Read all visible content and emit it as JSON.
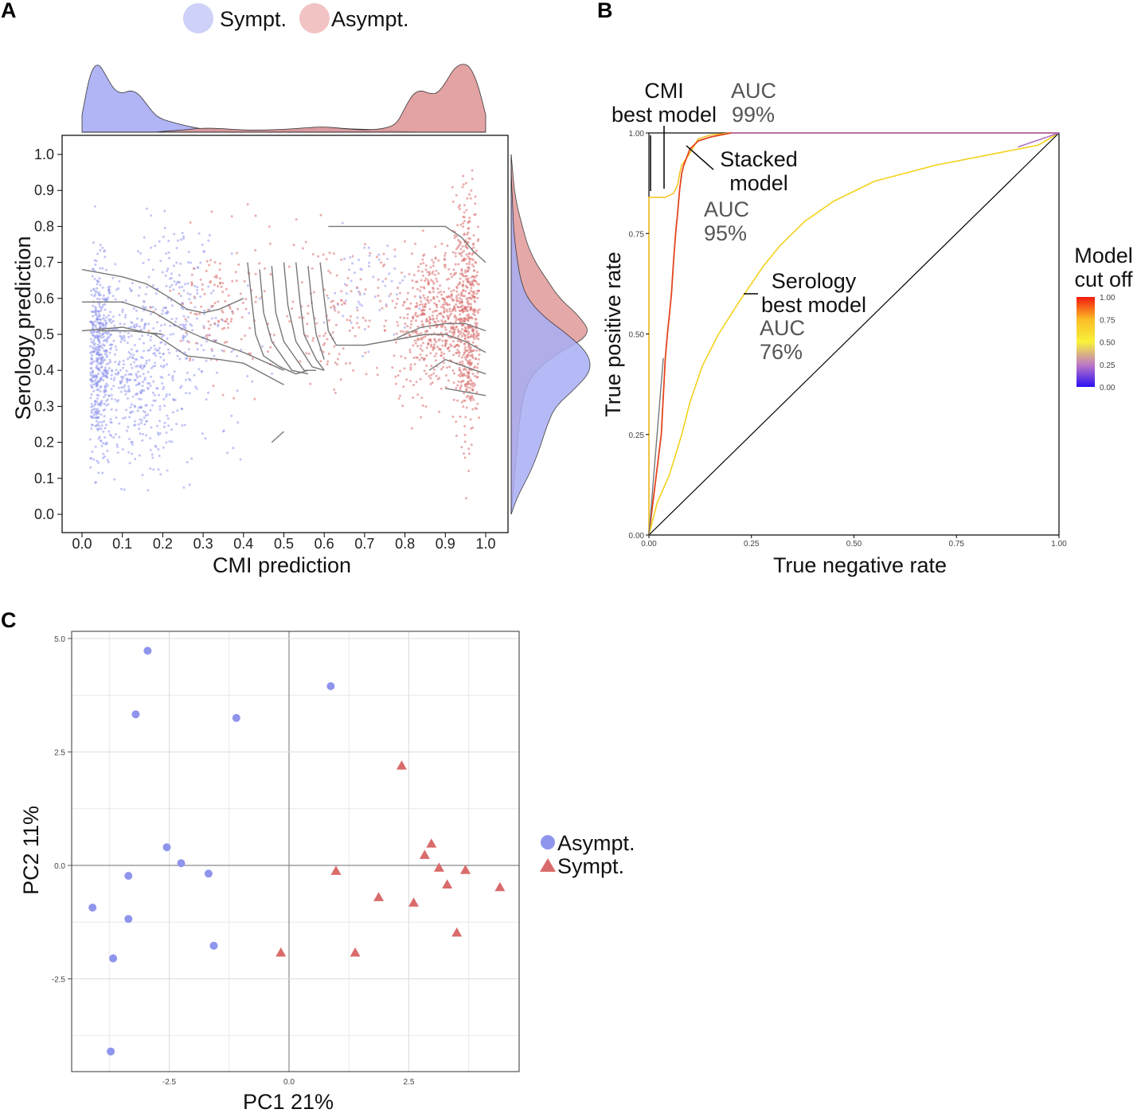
{
  "colors": {
    "sympt": "#8f95ec",
    "asympt": "#d96b6b",
    "sympt_fill": "#a9aef5",
    "asympt_fill": "#e0999a",
    "grid": "#e8e8e8"
  },
  "chart_data": [
    {
      "panel": "A",
      "type": "scatter",
      "legend": {
        "items": [
          "Sympt.",
          "Asympt."
        ],
        "placement": "top"
      },
      "xlabel": "CMI prediction",
      "ylabel": "Serology prediction",
      "xlim": [
        0,
        1
      ],
      "ylim": [
        0,
        1
      ],
      "x_ticks": [
        "0.0",
        "0.1",
        "0.2",
        "0.3",
        "0.4",
        "0.5",
        "0.6",
        "0.7",
        "0.8",
        "0.9",
        "1.0"
      ],
      "y_ticks": [
        "0.0",
        "0.1",
        "0.2",
        "0.3",
        "0.4",
        "0.5",
        "0.6",
        "0.7",
        "0.8",
        "0.9",
        "1.0"
      ],
      "marginal_x": {
        "x": [
          0.0,
          0.02,
          0.04,
          0.06,
          0.08,
          0.1,
          0.12,
          0.14,
          0.16,
          0.18,
          0.2,
          0.22,
          0.25,
          0.3,
          0.35,
          0.4,
          0.45,
          0.5,
          0.55,
          0.6,
          0.65,
          0.7,
          0.75,
          0.78,
          0.8,
          0.82,
          0.84,
          0.86,
          0.88,
          0.9,
          0.92,
          0.94,
          0.96,
          0.98,
          1.0
        ],
        "sympt": [
          0.25,
          0.85,
          1.0,
          0.8,
          0.6,
          0.55,
          0.6,
          0.55,
          0.4,
          0.25,
          0.18,
          0.15,
          0.1,
          0.04,
          0.03,
          0.03,
          0.03,
          0.03,
          0.04,
          0.06,
          0.05,
          0.04,
          0.03,
          0.02,
          0.01,
          0.0,
          0.0,
          0.0,
          0.0,
          0.0,
          0.0,
          0.0,
          0.0,
          0.0,
          0.0
        ],
        "asympt": [
          0.0,
          0.0,
          0.0,
          0.0,
          0.0,
          0.0,
          0.0,
          0.0,
          0.0,
          0.0,
          0.01,
          0.02,
          0.03,
          0.06,
          0.05,
          0.03,
          0.03,
          0.04,
          0.06,
          0.08,
          0.05,
          0.03,
          0.05,
          0.12,
          0.35,
          0.55,
          0.6,
          0.55,
          0.55,
          0.7,
          0.9,
          0.98,
          0.95,
          0.7,
          0.25
        ]
      },
      "marginal_y": {
        "y": [
          0.0,
          0.05,
          0.1,
          0.15,
          0.2,
          0.25,
          0.3,
          0.35,
          0.4,
          0.45,
          0.5,
          0.55,
          0.6,
          0.65,
          0.7,
          0.75,
          0.8,
          0.85,
          0.9,
          0.95,
          1.0
        ],
        "sympt": [
          0.0,
          0.08,
          0.2,
          0.3,
          0.38,
          0.45,
          0.55,
          0.8,
          1.0,
          0.95,
          0.7,
          0.4,
          0.2,
          0.12,
          0.08,
          0.05,
          0.03,
          0.02,
          0.01,
          0.0,
          0.0
        ],
        "asympt": [
          0.0,
          0.02,
          0.04,
          0.06,
          0.08,
          0.1,
          0.13,
          0.18,
          0.3,
          0.6,
          1.0,
          0.85,
          0.6,
          0.45,
          0.3,
          0.2,
          0.14,
          0.08,
          0.04,
          0.02,
          0.0
        ]
      },
      "contour_lines": [
        [
          [
            0.0,
            0.68
          ],
          [
            0.1,
            0.66
          ],
          [
            0.16,
            0.64
          ],
          [
            0.22,
            0.6
          ],
          [
            0.26,
            0.57
          ],
          [
            0.3,
            0.56
          ],
          [
            0.34,
            0.57
          ],
          [
            0.4,
            0.6
          ]
        ],
        [
          [
            0.0,
            0.59
          ],
          [
            0.1,
            0.59
          ],
          [
            0.18,
            0.56
          ],
          [
            0.24,
            0.52
          ],
          [
            0.3,
            0.49
          ],
          [
            0.4,
            0.45
          ],
          [
            0.5,
            0.4
          ]
        ],
        [
          [
            0.0,
            0.51
          ],
          [
            0.1,
            0.52
          ],
          [
            0.18,
            0.5
          ],
          [
            0.26,
            0.44
          ],
          [
            0.34,
            0.43
          ],
          [
            0.4,
            0.42
          ],
          [
            0.5,
            0.36
          ]
        ],
        [
          [
            0.04,
            0.51
          ],
          [
            0.12,
            0.51
          ],
          [
            0.2,
            0.5
          ]
        ],
        [
          [
            0.41,
            0.7
          ],
          [
            0.42,
            0.6
          ],
          [
            0.43,
            0.5
          ],
          [
            0.45,
            0.44
          ],
          [
            0.49,
            0.41
          ],
          [
            0.53,
            0.39
          ],
          [
            0.56,
            0.4
          ]
        ],
        [
          [
            0.44,
            0.68
          ],
          [
            0.45,
            0.56
          ],
          [
            0.47,
            0.48
          ],
          [
            0.52,
            0.4
          ],
          [
            0.56,
            0.39
          ]
        ],
        [
          [
            0.47,
            0.69
          ],
          [
            0.48,
            0.56
          ],
          [
            0.5,
            0.48
          ],
          [
            0.55,
            0.4
          ],
          [
            0.58,
            0.4
          ]
        ],
        [
          [
            0.5,
            0.7
          ],
          [
            0.51,
            0.58
          ],
          [
            0.53,
            0.48
          ],
          [
            0.57,
            0.41
          ],
          [
            0.6,
            0.4
          ]
        ],
        [
          [
            0.53,
            0.7
          ],
          [
            0.54,
            0.59
          ],
          [
            0.55,
            0.5
          ],
          [
            0.58,
            0.43
          ],
          [
            0.6,
            0.4
          ]
        ],
        [
          [
            0.56,
            0.69
          ],
          [
            0.57,
            0.58
          ],
          [
            0.58,
            0.5
          ],
          [
            0.6,
            0.43
          ]
        ],
        [
          [
            0.59,
            0.7
          ],
          [
            0.6,
            0.6
          ],
          [
            0.61,
            0.51
          ],
          [
            0.63,
            0.47
          ],
          [
            0.7,
            0.47
          ],
          [
            0.75,
            0.48
          ],
          [
            0.8,
            0.49
          ],
          [
            0.85,
            0.5
          ],
          [
            0.9,
            0.5
          ],
          [
            0.95,
            0.48
          ],
          [
            1.0,
            0.45
          ]
        ],
        [
          [
            0.61,
            0.8
          ],
          [
            0.8,
            0.8
          ],
          [
            0.9,
            0.8
          ],
          [
            0.94,
            0.77
          ],
          [
            0.97,
            0.73
          ],
          [
            1.0,
            0.7
          ]
        ],
        [
          [
            0.78,
            0.49
          ],
          [
            0.84,
            0.52
          ],
          [
            0.9,
            0.53
          ],
          [
            0.95,
            0.53
          ],
          [
            1.0,
            0.51
          ]
        ],
        [
          [
            0.86,
            0.4
          ],
          [
            0.9,
            0.43
          ],
          [
            0.95,
            0.41
          ],
          [
            1.0,
            0.39
          ]
        ],
        [
          [
            0.9,
            0.35
          ],
          [
            0.95,
            0.34
          ],
          [
            1.0,
            0.33
          ]
        ],
        [
          [
            0.47,
            0.2
          ],
          [
            0.5,
            0.23
          ]
        ]
      ]
    },
    {
      "panel": "B",
      "type": "line",
      "xlabel": "True negative rate",
      "ylabel": "True positive rate",
      "xlim": [
        0,
        1
      ],
      "ylim": [
        0,
        1
      ],
      "x_ticks": [
        "0.00",
        "0.25",
        "0.50",
        "0.75",
        "1.00"
      ],
      "y_ticks": [
        "0.00",
        "0.25",
        "0.50",
        "0.75",
        "1.00"
      ],
      "colorbar": {
        "title_line1": "Model",
        "title_line2": "cut off",
        "ticks": [
          "1.00",
          "0.75",
          "0.50",
          "0.25",
          "0.00"
        ]
      },
      "series": [
        {
          "name": "CMI best model",
          "auc_label": "AUC",
          "auc_value": "99%",
          "points": [
            [
              0.0,
              0.0
            ],
            [
              0.0,
              0.84
            ],
            [
              0.02,
              0.84
            ],
            [
              0.04,
              0.84
            ],
            [
              0.06,
              0.85
            ],
            [
              0.07,
              0.87
            ],
            [
              0.075,
              0.9
            ],
            [
              0.08,
              0.92
            ],
            [
              0.1,
              0.95
            ],
            [
              0.12,
              0.985
            ],
            [
              0.15,
              0.995
            ],
            [
              0.2,
              1.0
            ],
            [
              0.5,
              1.0
            ],
            [
              1.0,
              1.0
            ]
          ]
        },
        {
          "name": "Stacked model",
          "auc_label": "AUC",
          "auc_value": "95%",
          "points": [
            [
              0.0,
              0.0
            ],
            [
              0.03,
              0.25
            ],
            [
              0.04,
              0.44
            ],
            [
              0.045,
              0.5
            ],
            [
              0.05,
              0.55
            ],
            [
              0.055,
              0.6
            ],
            [
              0.06,
              0.68
            ],
            [
              0.065,
              0.75
            ],
            [
              0.07,
              0.8
            ],
            [
              0.075,
              0.86
            ],
            [
              0.08,
              0.9
            ],
            [
              0.085,
              0.92
            ],
            [
              0.1,
              0.96
            ],
            [
              0.12,
              0.98
            ],
            [
              0.15,
              0.99
            ],
            [
              0.2,
              1.0
            ],
            [
              1.0,
              1.0
            ]
          ]
        },
        {
          "name": "Serology best model",
          "auc_label": "AUC",
          "auc_value": "76%",
          "points": [
            [
              0.0,
              0.0
            ],
            [
              0.02,
              0.08
            ],
            [
              0.05,
              0.15
            ],
            [
              0.08,
              0.25
            ],
            [
              0.1,
              0.33
            ],
            [
              0.13,
              0.42
            ],
            [
              0.17,
              0.5
            ],
            [
              0.22,
              0.58
            ],
            [
              0.28,
              0.67
            ],
            [
              0.32,
              0.72
            ],
            [
              0.38,
              0.78
            ],
            [
              0.45,
              0.83
            ],
            [
              0.55,
              0.88
            ],
            [
              0.7,
              0.92
            ],
            [
              0.85,
              0.95
            ],
            [
              0.95,
              0.97
            ],
            [
              1.0,
              1.0
            ]
          ]
        },
        {
          "name": "reference",
          "points": [
            [
              0.0,
              0.0
            ],
            [
              1.0,
              1.0
            ]
          ]
        }
      ]
    },
    {
      "panel": "C",
      "type": "scatter",
      "xlabel": "PC1 21%",
      "ylabel": "PC2 11%",
      "xlim": [
        -4.5,
        4.8
      ],
      "ylim": [
        -4.5,
        5.2
      ],
      "x_ticks": [
        -2.5,
        0.0,
        2.5
      ],
      "y_ticks": [
        -2.5,
        0.0,
        2.5,
        5.0
      ],
      "legend": {
        "items": [
          "Asympt.",
          "Sympt."
        ],
        "placement": "right"
      },
      "series": [
        {
          "name": "Asympt.",
          "marker": "circle",
          "points": [
            [
              -2.95,
              4.73
            ],
            [
              -3.2,
              3.33
            ],
            [
              -1.1,
              3.25
            ],
            [
              0.87,
              3.95
            ],
            [
              -2.55,
              0.4
            ],
            [
              -2.25,
              0.05
            ],
            [
              -1.68,
              -0.18
            ],
            [
              -3.35,
              -0.23
            ],
            [
              -4.1,
              -0.93
            ],
            [
              -3.35,
              -1.18
            ],
            [
              -1.57,
              -1.77
            ],
            [
              -3.67,
              -2.05
            ],
            [
              -3.72,
              -4.1
            ]
          ]
        },
        {
          "name": "Sympt.",
          "marker": "triangle",
          "points": [
            [
              2.35,
              2.2
            ],
            [
              2.97,
              0.48
            ],
            [
              2.83,
              0.23
            ],
            [
              0.98,
              -0.12
            ],
            [
              3.13,
              -0.05
            ],
            [
              3.68,
              -0.1
            ],
            [
              3.3,
              -0.42
            ],
            [
              4.4,
              -0.48
            ],
            [
              1.87,
              -0.7
            ],
            [
              2.6,
              -0.82
            ],
            [
              3.5,
              -1.48
            ],
            [
              -0.17,
              -1.92
            ],
            [
              1.38,
              -1.92
            ]
          ]
        }
      ]
    }
  ]
}
